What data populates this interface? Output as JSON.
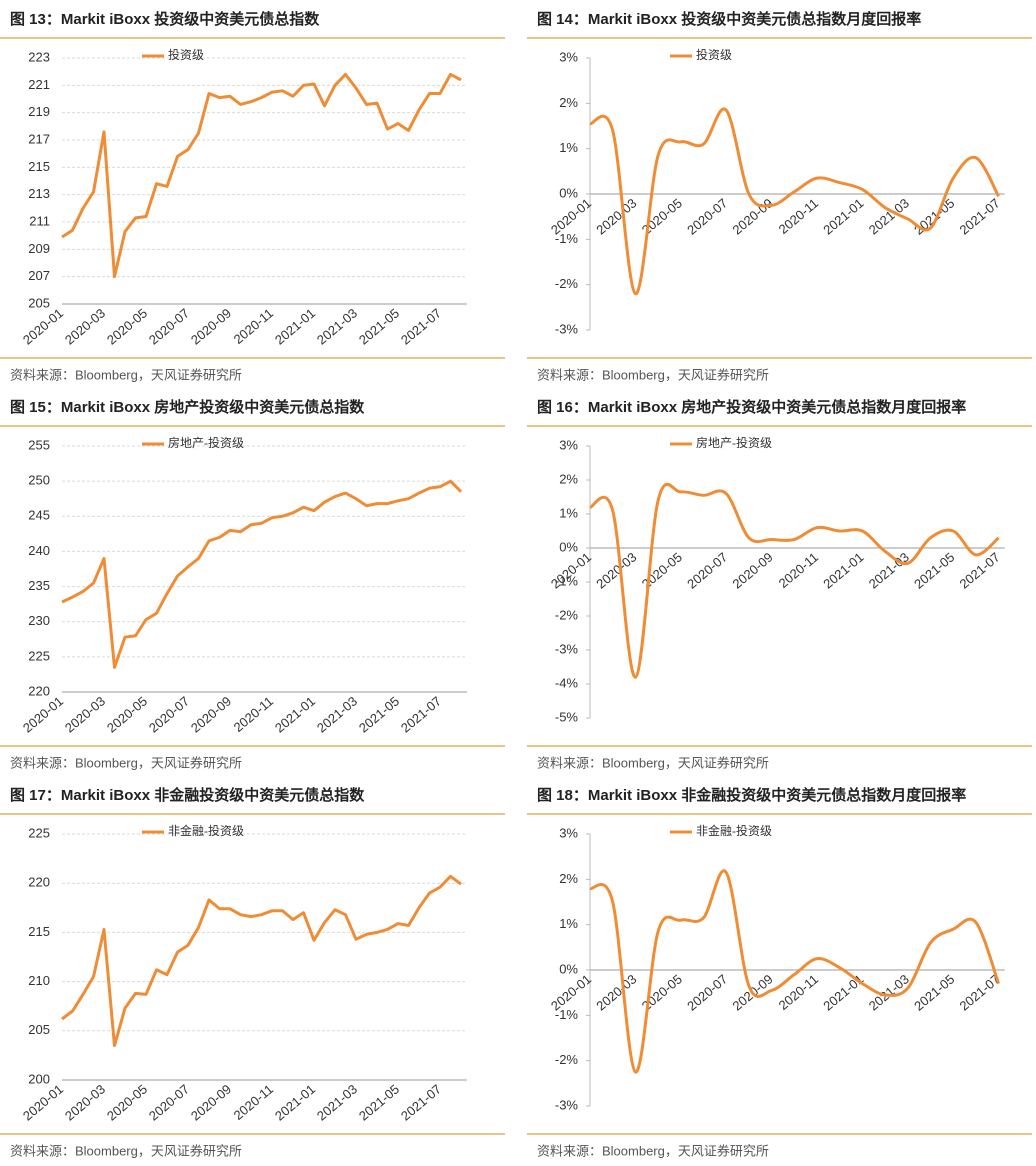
{
  "chart_data": [
    {
      "type": "line",
      "title": "图 13：Markit iBoxx 投资级中资美元债总指数",
      "source": "资料来源：Bloomberg，天风证券研究所",
      "categories": [
        "2020-01",
        null,
        null,
        null,
        "2020-03",
        null,
        null,
        null,
        "2020-05",
        null,
        null,
        null,
        "2020-07",
        null,
        null,
        null,
        "2020-09",
        null,
        null,
        null,
        "2020-11",
        null,
        null,
        null,
        "2021-01",
        null,
        null,
        null,
        "2021-03",
        null,
        null,
        null,
        "2021-05",
        null,
        null,
        null,
        "2021-07",
        null,
        null
      ],
      "series": [
        {
          "name": "投资级",
          "color": "#ef8c34",
          "values": [
            209.9,
            210.4,
            212,
            213.2,
            217.6,
            207,
            210.3,
            211.3,
            211.4,
            213.8,
            213.6,
            215.8,
            216.3,
            217.5,
            220.4,
            220.1,
            220.2,
            219.6,
            219.8,
            220.1,
            220.5,
            220.6,
            220.2,
            221,
            221.1,
            219.5,
            221,
            221.8,
            220.8,
            219.6,
            219.7,
            217.8,
            218.2,
            217.7,
            219.2,
            220.4,
            220.4,
            221.8,
            221.4
          ]
        }
      ],
      "ylim": [
        205,
        223
      ],
      "yticks": [
        205,
        207,
        209,
        211,
        213,
        215,
        217,
        219,
        221,
        223
      ],
      "grid": true,
      "smooth": false,
      "legend": "top"
    },
    {
      "type": "line",
      "title": "图 14：Markit iBoxx 投资级中资美元债总指数月度回报率",
      "source": "资料来源：Bloomberg，天风证券研究所",
      "categories": [
        "2020-01",
        null,
        "2020-03",
        null,
        "2020-05",
        null,
        "2020-07",
        null,
        "2020-09",
        null,
        "2020-11",
        null,
        "2021-01",
        null,
        "2021-03",
        null,
        "2021-05",
        null,
        "2021-07"
      ],
      "series": [
        {
          "name": "投资级",
          "color": "#ef8c34",
          "values": [
            1.55,
            1.4,
            -2.2,
            0.85,
            1.15,
            1.1,
            1.85,
            0,
            -0.25,
            0.05,
            0.35,
            0.25,
            0.1,
            -0.3,
            -0.55,
            -0.75,
            0.35,
            0.8,
            -0.05
          ]
        }
      ],
      "ylim": [
        -3,
        3
      ],
      "yticks": [
        {
          "value": -3,
          "label": "-3%"
        },
        {
          "value": -2,
          "label": "-2%"
        },
        {
          "value": -1,
          "label": "-1%"
        },
        {
          "value": 0,
          "label": "0%"
        },
        {
          "value": 1,
          "label": "1%"
        },
        {
          "value": 2,
          "label": "2%"
        },
        {
          "value": 3,
          "label": "3%"
        }
      ],
      "grid": false,
      "smooth": true,
      "legend": "top"
    },
    {
      "type": "line",
      "title": "图 15：Markit iBoxx 房地产投资级中资美元债总指数",
      "source": "资料来源：Bloomberg，天风证券研究所",
      "categories": [
        "2020-01",
        null,
        null,
        null,
        "2020-03",
        null,
        null,
        null,
        "2020-05",
        null,
        null,
        null,
        "2020-07",
        null,
        null,
        null,
        "2020-09",
        null,
        null,
        null,
        "2020-11",
        null,
        null,
        null,
        "2021-01",
        null,
        null,
        null,
        "2021-03",
        null,
        null,
        null,
        "2021-05",
        null,
        null,
        null,
        "2021-07",
        null,
        null
      ],
      "series": [
        {
          "name": "房地产-投资级",
          "color": "#ef8c34",
          "values": [
            232.8,
            233.5,
            234.3,
            235.5,
            239,
            223.5,
            227.8,
            228,
            230.3,
            231.2,
            234,
            236.5,
            237.8,
            239,
            241.5,
            242,
            243,
            242.8,
            243.8,
            244,
            244.8,
            245,
            245.5,
            246.3,
            245.8,
            247,
            247.8,
            248.3,
            247.5,
            246.5,
            246.8,
            246.8,
            247.2,
            247.5,
            248.3,
            249,
            249.2,
            250,
            248.5
          ]
        }
      ],
      "ylim": [
        220,
        255
      ],
      "yticks": [
        220,
        225,
        230,
        235,
        240,
        245,
        250,
        255
      ],
      "grid": true,
      "smooth": false,
      "legend": "top"
    },
    {
      "type": "line",
      "title": "图 16：Markit iBoxx 房地产投资级中资美元债总指数月度回报率",
      "source": "资料来源：Bloomberg，天风证券研究所",
      "categories": [
        "2020-01",
        null,
        "2020-03",
        null,
        "2020-05",
        null,
        "2020-07",
        null,
        "2020-09",
        null,
        "2020-11",
        null,
        "2021-01",
        null,
        "2021-03",
        null,
        "2021-05",
        null,
        "2021-07"
      ],
      "series": [
        {
          "name": "房地产-投资级",
          "color": "#ef8c34",
          "values": [
            1.2,
            1.1,
            -3.8,
            1.4,
            1.65,
            1.55,
            1.6,
            0.3,
            0.25,
            0.25,
            0.6,
            0.5,
            0.5,
            -0.1,
            -0.45,
            0.3,
            0.5,
            -0.2,
            0.3
          ]
        }
      ],
      "ylim": [
        -5,
        3
      ],
      "yticks": [
        {
          "value": -5,
          "label": "-5%"
        },
        {
          "value": -4,
          "label": "-4%"
        },
        {
          "value": -3,
          "label": "-3%"
        },
        {
          "value": -2,
          "label": "-2%"
        },
        {
          "value": -1,
          "label": "-1%"
        },
        {
          "value": 0,
          "label": "0%"
        },
        {
          "value": 1,
          "label": "1%"
        },
        {
          "value": 2,
          "label": "2%"
        },
        {
          "value": 3,
          "label": "3%"
        }
      ],
      "grid": false,
      "smooth": true,
      "legend": "top"
    },
    {
      "type": "line",
      "title": "图 17：Markit iBoxx 非金融投资级中资美元债总指数",
      "source": "资料来源：Bloomberg，天风证券研究所",
      "categories": [
        "2020-01",
        null,
        null,
        null,
        "2020-03",
        null,
        null,
        null,
        "2020-05",
        null,
        null,
        null,
        "2020-07",
        null,
        null,
        null,
        "2020-09",
        null,
        null,
        null,
        "2020-11",
        null,
        null,
        null,
        "2021-01",
        null,
        null,
        null,
        "2021-03",
        null,
        null,
        null,
        "2021-05",
        null,
        null,
        null,
        "2021-07",
        null,
        null
      ],
      "series": [
        {
          "name": "非金融-投资级",
          "color": "#ef8c34",
          "values": [
            206.2,
            207,
            208.7,
            210.5,
            215.3,
            203.5,
            207.3,
            208.8,
            208.7,
            211.2,
            210.7,
            213,
            213.7,
            215.5,
            218.3,
            217.4,
            217.4,
            216.8,
            216.6,
            216.8,
            217.2,
            217.2,
            216.3,
            217,
            214.2,
            216,
            217.3,
            216.8,
            214.3,
            214.8,
            215,
            215.3,
            215.9,
            215.7,
            217.5,
            219,
            219.6,
            220.7,
            219.9
          ]
        }
      ],
      "ylim": [
        200,
        225
      ],
      "yticks": [
        200,
        205,
        210,
        215,
        220,
        225
      ],
      "grid": true,
      "smooth": false,
      "legend": "top"
    },
    {
      "type": "line",
      "title": "图 18：Markit iBoxx 非金融投资级中资美元债总指数月度回报率",
      "source": "资料来源：Bloomberg，天风证券研究所",
      "categories": [
        "2020-01",
        null,
        "2020-03",
        null,
        "2020-05",
        null,
        "2020-07",
        null,
        "2020-09",
        null,
        "2020-11",
        null,
        "2021-01",
        null,
        "2021-03",
        null,
        "2021-05",
        null,
        "2021-07"
      ],
      "series": [
        {
          "name": "非金融-投资级",
          "color": "#ef8c34",
          "values": [
            1.8,
            1.5,
            -2.25,
            0.85,
            1.1,
            1.15,
            2.15,
            -0.35,
            -0.45,
            -0.1,
            0.25,
            0.05,
            -0.3,
            -0.55,
            -0.4,
            0.6,
            0.9,
            1.05,
            -0.3
          ]
        }
      ],
      "ylim": [
        -3,
        3
      ],
      "yticks": [
        {
          "value": -3,
          "label": "-3%"
        },
        {
          "value": -2,
          "label": "-2%"
        },
        {
          "value": -1,
          "label": "-1%"
        },
        {
          "value": 0,
          "label": "0%"
        },
        {
          "value": 1,
          "label": "1%"
        },
        {
          "value": 2,
          "label": "2%"
        },
        {
          "value": 3,
          "label": "3%"
        }
      ],
      "grid": false,
      "smooth": true,
      "legend": "top"
    }
  ]
}
